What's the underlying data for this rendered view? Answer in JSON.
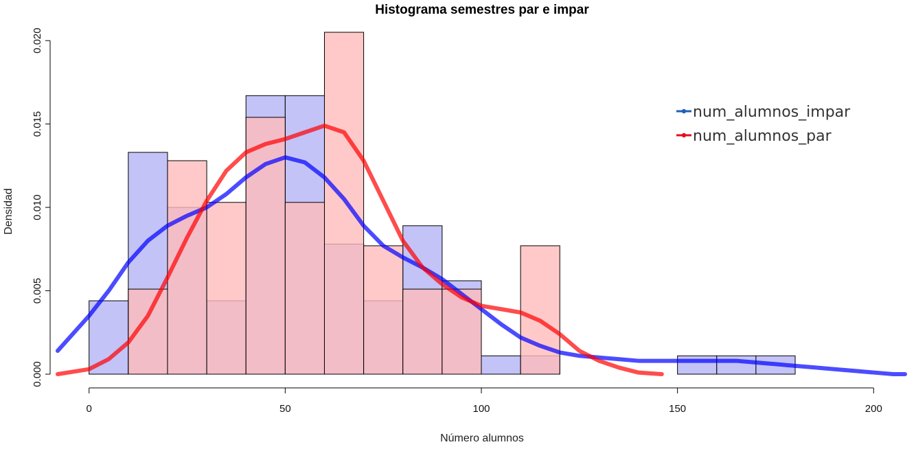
{
  "chart_data": {
    "type": "histogram",
    "title": "Histograma semestres par e impar",
    "xlabel": "Número alumnos",
    "ylabel": "Densidad",
    "xlim": [
      -8,
      208
    ],
    "ylim": [
      0,
      0.0205
    ],
    "xticks": [
      0,
      50,
      100,
      150,
      200
    ],
    "xtick_labels": [
      "0",
      "50",
      "100",
      "150",
      "200"
    ],
    "yticks": [
      0,
      0.005,
      0.01,
      0.015,
      0.02
    ],
    "ytick_labels": [
      "0.000",
      "0.005",
      "0.010",
      "0.015",
      "0.020"
    ],
    "bin_edges": [
      0,
      10,
      20,
      30,
      40,
      50,
      60,
      70,
      80,
      90,
      100,
      110,
      120,
      130,
      140,
      150,
      160,
      170,
      180
    ],
    "series": [
      {
        "name": "num_alumnos_impar",
        "fill": "#b4b4f5",
        "line_color": "#0000ff",
        "densities": [
          0.0044,
          0.0133,
          0.01,
          0.0044,
          0.0167,
          0.0167,
          0.0078,
          0.0044,
          0.0089,
          0.0056,
          0.0011,
          0.0011,
          0.0,
          0.0,
          0.0,
          0.0011,
          0.0011,
          0.0011
        ],
        "density_curve": [
          [
            -8,
            0.0014
          ],
          [
            0,
            0.0035
          ],
          [
            5,
            0.005
          ],
          [
            10,
            0.0067
          ],
          [
            15,
            0.008
          ],
          [
            20,
            0.0089
          ],
          [
            25,
            0.0095
          ],
          [
            30,
            0.01
          ],
          [
            35,
            0.0108
          ],
          [
            40,
            0.0118
          ],
          [
            45,
            0.0126
          ],
          [
            50,
            0.013
          ],
          [
            55,
            0.0127
          ],
          [
            60,
            0.0118
          ],
          [
            65,
            0.0105
          ],
          [
            70,
            0.0089
          ],
          [
            75,
            0.0077
          ],
          [
            80,
            0.007
          ],
          [
            85,
            0.0064
          ],
          [
            90,
            0.0057
          ],
          [
            95,
            0.0048
          ],
          [
            100,
            0.0039
          ],
          [
            105,
            0.003
          ],
          [
            110,
            0.0022
          ],
          [
            115,
            0.0017
          ],
          [
            120,
            0.0013
          ],
          [
            125,
            0.0011
          ],
          [
            130,
            0.001
          ],
          [
            135,
            0.0009
          ],
          [
            140,
            0.0008
          ],
          [
            150,
            0.0008
          ],
          [
            160,
            0.0008
          ],
          [
            165,
            0.0008
          ],
          [
            170,
            0.0007
          ],
          [
            175,
            0.0006
          ],
          [
            180,
            0.0005
          ],
          [
            185,
            0.0004
          ],
          [
            190,
            0.0003
          ],
          [
            195,
            0.0002
          ],
          [
            200,
            0.0001
          ],
          [
            205,
            0.0
          ],
          [
            208,
            0.0
          ]
        ]
      },
      {
        "name": "num_alumnos_par",
        "fill": "#ffbcbc",
        "line_color": "#ff0000",
        "densities": [
          0.0,
          0.0051,
          0.0128,
          0.0103,
          0.0154,
          0.0103,
          0.0205,
          0.0077,
          0.0051,
          0.0051,
          0.0,
          0.0077,
          0.0,
          0.0,
          0.0,
          0.0,
          0.0,
          0.0
        ],
        "density_curve": [
          [
            -8,
            0.0
          ],
          [
            0,
            0.0003
          ],
          [
            5,
            0.0009
          ],
          [
            10,
            0.0019
          ],
          [
            15,
            0.0035
          ],
          [
            20,
            0.0058
          ],
          [
            25,
            0.0082
          ],
          [
            30,
            0.0104
          ],
          [
            35,
            0.0122
          ],
          [
            40,
            0.0133
          ],
          [
            45,
            0.0138
          ],
          [
            50,
            0.0141
          ],
          [
            55,
            0.0145
          ],
          [
            60,
            0.0149
          ],
          [
            65,
            0.0145
          ],
          [
            70,
            0.0128
          ],
          [
            75,
            0.0104
          ],
          [
            80,
            0.008
          ],
          [
            85,
            0.0064
          ],
          [
            90,
            0.0054
          ],
          [
            95,
            0.0046
          ],
          [
            100,
            0.0041
          ],
          [
            105,
            0.0039
          ],
          [
            110,
            0.0037
          ],
          [
            115,
            0.0032
          ],
          [
            120,
            0.0024
          ],
          [
            125,
            0.0014
          ],
          [
            130,
            0.0008
          ],
          [
            135,
            0.0004
          ],
          [
            140,
            0.0001
          ],
          [
            146,
            0.0
          ]
        ]
      }
    ],
    "legend": {
      "position": "top-right",
      "entries": [
        {
          "label": "num_alumnos_impar",
          "color": "#1f5fbf"
        },
        {
          "label": "num_alumnos_par",
          "color": "#e01020"
        }
      ]
    },
    "grid": false
  }
}
